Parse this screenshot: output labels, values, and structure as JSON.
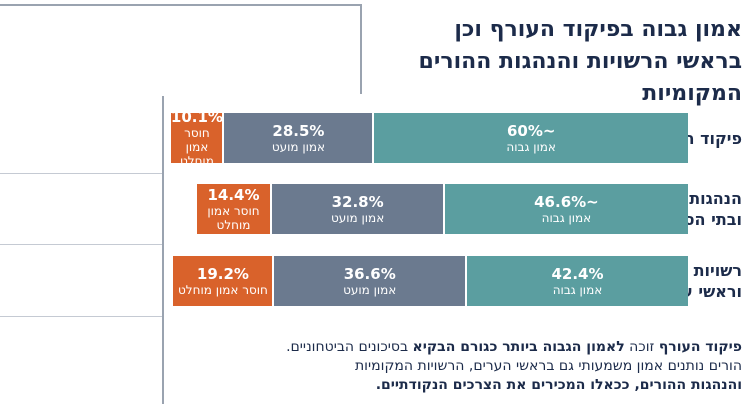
{
  "chart_data": {
    "type": "stacked-bar-horizontal",
    "title": "אמון גבוה בפיקוד העורף וכן בראשי הרשויות והנהגות ההורים המקומיות",
    "categories": [
      "פיקוד העורף",
      "הנהגות מקומיות ובתי הספר",
      "רשויות מקומיות וראשי ערים"
    ],
    "xlim": [
      0,
      100
    ],
    "series": [
      {
        "name": "אמון גבוה",
        "color": "#5b9ea0",
        "values": [
          60,
          46.6,
          42.4
        ],
        "value_labels": [
          "~60%",
          "~46.6%",
          "42.4%"
        ]
      },
      {
        "name": "אמון מועט",
        "color": "#6b7a8f",
        "values": [
          28.5,
          32.8,
          36.6
        ],
        "value_labels": [
          "28.5%",
          "32.8%",
          "36.6%"
        ]
      },
      {
        "name": "חוסר אמון מוחלט",
        "color": "#d9622b",
        "values": [
          10.1,
          14.4,
          19.2
        ],
        "value_labels": [
          "10.1%",
          "14.4%",
          "19.2%"
        ]
      }
    ],
    "note": [
      [
        {
          "text": "פיקוד העורף",
          "bold": true
        },
        {
          "text": " זוכה ",
          "bold": false
        },
        {
          "text": "לאמון הגבוה ביותר כגורם הבקיא",
          "bold": true
        },
        {
          "text": " בסיכונים הביטחוניים.",
          "bold": false
        }
      ],
      [
        {
          "text": "הורים נותנים אמון משמעותי גם בראשי הערים, הרשויות המקומיות",
          "bold": false
        }
      ],
      [
        {
          "text": "והנהגות ההורים, ככאלו המכירים את הצרכים הנקודתיים.",
          "bold": true
        }
      ]
    ]
  }
}
